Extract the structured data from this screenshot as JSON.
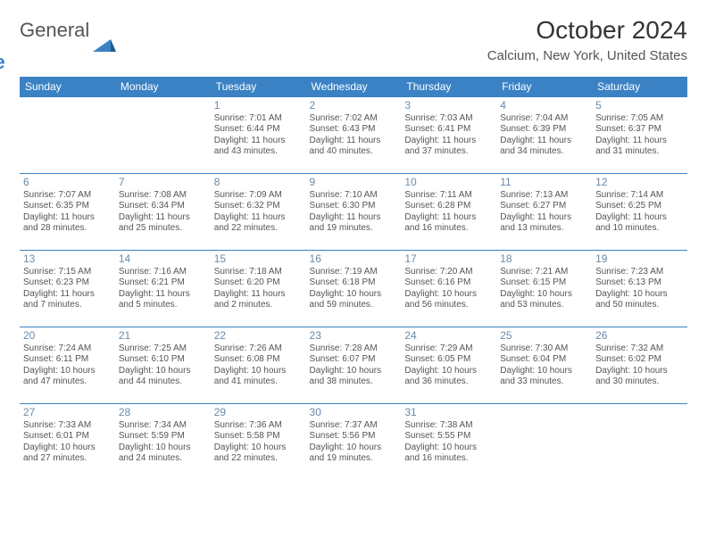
{
  "brand": {
    "word1": "General",
    "word2": "Blue"
  },
  "title": "October 2024",
  "location": "Calcium, New York, United States",
  "colors": {
    "accent": "#3a82c4",
    "text": "#333333",
    "muted": "#555555",
    "daynum": "#6a8aa8",
    "bg": "#ffffff"
  },
  "weekdays": [
    "Sunday",
    "Monday",
    "Tuesday",
    "Wednesday",
    "Thursday",
    "Friday",
    "Saturday"
  ],
  "layout": {
    "first_weekday_index": 2,
    "days_in_month": 31,
    "rows": 5,
    "cols": 7
  },
  "days": {
    "1": {
      "sunrise": "Sunrise: 7:01 AM",
      "sunset": "Sunset: 6:44 PM",
      "daylight": "Daylight: 11 hours and 43 minutes."
    },
    "2": {
      "sunrise": "Sunrise: 7:02 AM",
      "sunset": "Sunset: 6:43 PM",
      "daylight": "Daylight: 11 hours and 40 minutes."
    },
    "3": {
      "sunrise": "Sunrise: 7:03 AM",
      "sunset": "Sunset: 6:41 PM",
      "daylight": "Daylight: 11 hours and 37 minutes."
    },
    "4": {
      "sunrise": "Sunrise: 7:04 AM",
      "sunset": "Sunset: 6:39 PM",
      "daylight": "Daylight: 11 hours and 34 minutes."
    },
    "5": {
      "sunrise": "Sunrise: 7:05 AM",
      "sunset": "Sunset: 6:37 PM",
      "daylight": "Daylight: 11 hours and 31 minutes."
    },
    "6": {
      "sunrise": "Sunrise: 7:07 AM",
      "sunset": "Sunset: 6:35 PM",
      "daylight": "Daylight: 11 hours and 28 minutes."
    },
    "7": {
      "sunrise": "Sunrise: 7:08 AM",
      "sunset": "Sunset: 6:34 PM",
      "daylight": "Daylight: 11 hours and 25 minutes."
    },
    "8": {
      "sunrise": "Sunrise: 7:09 AM",
      "sunset": "Sunset: 6:32 PM",
      "daylight": "Daylight: 11 hours and 22 minutes."
    },
    "9": {
      "sunrise": "Sunrise: 7:10 AM",
      "sunset": "Sunset: 6:30 PM",
      "daylight": "Daylight: 11 hours and 19 minutes."
    },
    "10": {
      "sunrise": "Sunrise: 7:11 AM",
      "sunset": "Sunset: 6:28 PM",
      "daylight": "Daylight: 11 hours and 16 minutes."
    },
    "11": {
      "sunrise": "Sunrise: 7:13 AM",
      "sunset": "Sunset: 6:27 PM",
      "daylight": "Daylight: 11 hours and 13 minutes."
    },
    "12": {
      "sunrise": "Sunrise: 7:14 AM",
      "sunset": "Sunset: 6:25 PM",
      "daylight": "Daylight: 11 hours and 10 minutes."
    },
    "13": {
      "sunrise": "Sunrise: 7:15 AM",
      "sunset": "Sunset: 6:23 PM",
      "daylight": "Daylight: 11 hours and 7 minutes."
    },
    "14": {
      "sunrise": "Sunrise: 7:16 AM",
      "sunset": "Sunset: 6:21 PM",
      "daylight": "Daylight: 11 hours and 5 minutes."
    },
    "15": {
      "sunrise": "Sunrise: 7:18 AM",
      "sunset": "Sunset: 6:20 PM",
      "daylight": "Daylight: 11 hours and 2 minutes."
    },
    "16": {
      "sunrise": "Sunrise: 7:19 AM",
      "sunset": "Sunset: 6:18 PM",
      "daylight": "Daylight: 10 hours and 59 minutes."
    },
    "17": {
      "sunrise": "Sunrise: 7:20 AM",
      "sunset": "Sunset: 6:16 PM",
      "daylight": "Daylight: 10 hours and 56 minutes."
    },
    "18": {
      "sunrise": "Sunrise: 7:21 AM",
      "sunset": "Sunset: 6:15 PM",
      "daylight": "Daylight: 10 hours and 53 minutes."
    },
    "19": {
      "sunrise": "Sunrise: 7:23 AM",
      "sunset": "Sunset: 6:13 PM",
      "daylight": "Daylight: 10 hours and 50 minutes."
    },
    "20": {
      "sunrise": "Sunrise: 7:24 AM",
      "sunset": "Sunset: 6:11 PM",
      "daylight": "Daylight: 10 hours and 47 minutes."
    },
    "21": {
      "sunrise": "Sunrise: 7:25 AM",
      "sunset": "Sunset: 6:10 PM",
      "daylight": "Daylight: 10 hours and 44 minutes."
    },
    "22": {
      "sunrise": "Sunrise: 7:26 AM",
      "sunset": "Sunset: 6:08 PM",
      "daylight": "Daylight: 10 hours and 41 minutes."
    },
    "23": {
      "sunrise": "Sunrise: 7:28 AM",
      "sunset": "Sunset: 6:07 PM",
      "daylight": "Daylight: 10 hours and 38 minutes."
    },
    "24": {
      "sunrise": "Sunrise: 7:29 AM",
      "sunset": "Sunset: 6:05 PM",
      "daylight": "Daylight: 10 hours and 36 minutes."
    },
    "25": {
      "sunrise": "Sunrise: 7:30 AM",
      "sunset": "Sunset: 6:04 PM",
      "daylight": "Daylight: 10 hours and 33 minutes."
    },
    "26": {
      "sunrise": "Sunrise: 7:32 AM",
      "sunset": "Sunset: 6:02 PM",
      "daylight": "Daylight: 10 hours and 30 minutes."
    },
    "27": {
      "sunrise": "Sunrise: 7:33 AM",
      "sunset": "Sunset: 6:01 PM",
      "daylight": "Daylight: 10 hours and 27 minutes."
    },
    "28": {
      "sunrise": "Sunrise: 7:34 AM",
      "sunset": "Sunset: 5:59 PM",
      "daylight": "Daylight: 10 hours and 24 minutes."
    },
    "29": {
      "sunrise": "Sunrise: 7:36 AM",
      "sunset": "Sunset: 5:58 PM",
      "daylight": "Daylight: 10 hours and 22 minutes."
    },
    "30": {
      "sunrise": "Sunrise: 7:37 AM",
      "sunset": "Sunset: 5:56 PM",
      "daylight": "Daylight: 10 hours and 19 minutes."
    },
    "31": {
      "sunrise": "Sunrise: 7:38 AM",
      "sunset": "Sunset: 5:55 PM",
      "daylight": "Daylight: 10 hours and 16 minutes."
    }
  }
}
